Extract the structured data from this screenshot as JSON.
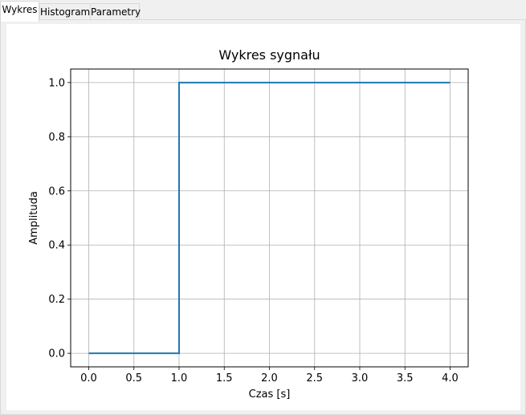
{
  "tabs": [
    {
      "label": "Wykres",
      "active": true
    },
    {
      "label": "Histogram",
      "active": false
    },
    {
      "label": "Parametry",
      "active": false
    }
  ],
  "chart_data": {
    "type": "line",
    "title": "Wykres sygnału",
    "xlabel": "Czas [s]",
    "ylabel": "Amplituda",
    "xlim": [
      -0.2,
      4.2
    ],
    "ylim": [
      -0.05,
      1.05
    ],
    "xticks": [
      0.0,
      0.5,
      1.0,
      1.5,
      2.0,
      2.5,
      3.0,
      3.5,
      4.0
    ],
    "xtick_labels": [
      "0.0",
      "0.5",
      "1.0",
      "1.5",
      "2.0",
      "2.5",
      "3.0",
      "3.5",
      "4.0"
    ],
    "yticks": [
      0.0,
      0.2,
      0.4,
      0.6,
      0.8,
      1.0
    ],
    "ytick_labels": [
      "0.0",
      "0.2",
      "0.4",
      "0.6",
      "0.8",
      "1.0"
    ],
    "grid": true,
    "series": [
      {
        "color": "#1f77b4",
        "x": [
          0.0,
          1.0,
          1.0,
          4.0
        ],
        "y": [
          0.0,
          0.0,
          1.0,
          1.0
        ]
      }
    ]
  }
}
